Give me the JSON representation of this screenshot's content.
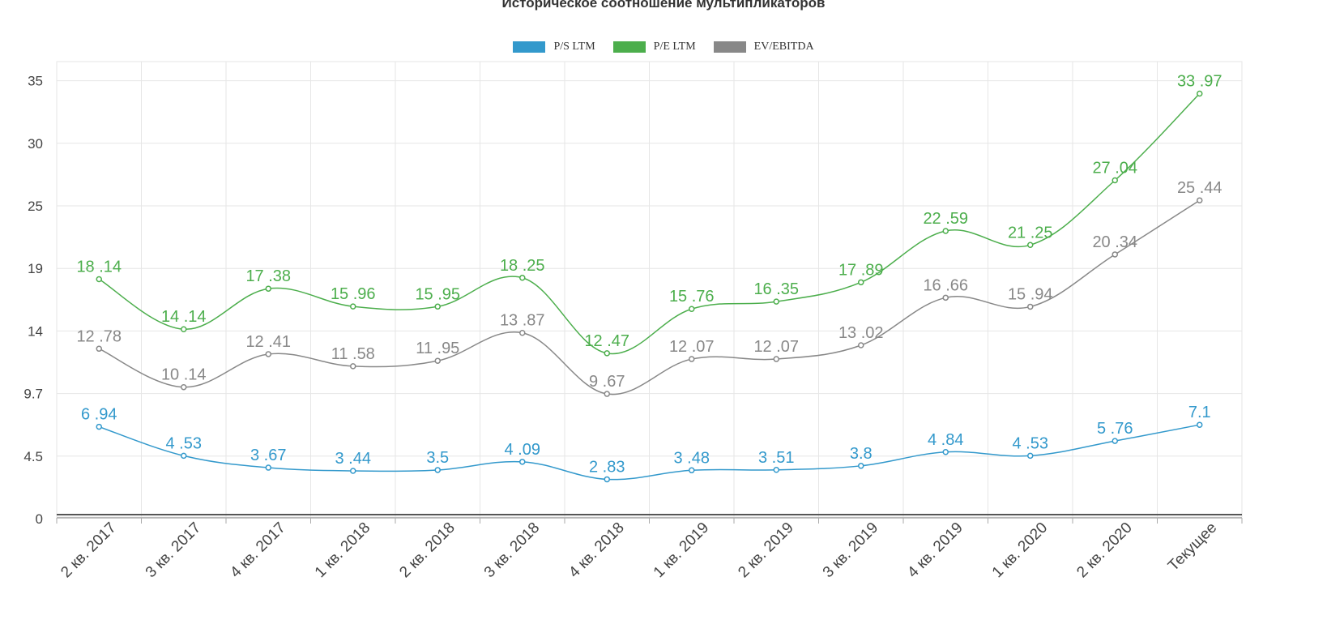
{
  "chart_data": {
    "type": "line",
    "title": "Историческое соотношение мультипликаторов",
    "categories": [
      "2 кв. 2017",
      "3 кв. 2017",
      "4 кв. 2017",
      "1 кв. 2018",
      "2 кв. 2018",
      "3 кв. 2018",
      "4 кв. 2018",
      "1 кв. 2019",
      "2 кв. 2019",
      "3 кв. 2019",
      "4 кв. 2019",
      "1 кв. 2020",
      "2 кв. 2020",
      "Текущее"
    ],
    "y_ticks": [
      "0",
      "4.5",
      "9.7",
      "14",
      "19",
      "25",
      "30",
      "35"
    ],
    "y_tick_values": [
      0,
      4.5,
      9.7,
      14,
      19,
      25,
      30,
      35
    ],
    "ylim": [
      0,
      35
    ],
    "grid": true,
    "legend_position": "top-center",
    "series": [
      {
        "name": "P/S LTM",
        "color": "#3399cc",
        "values": [
          6.94,
          4.53,
          3.67,
          3.44,
          3.5,
          4.09,
          2.83,
          3.48,
          3.51,
          3.8,
          4.84,
          4.53,
          5.76,
          7.1
        ],
        "labels": [
          "6 .94",
          "4 .53",
          "3 .67",
          "3 .44",
          "3.5",
          "4 .09",
          "2 .83",
          "3 .48",
          "3 .51",
          "3.8",
          "4 .84",
          "4 .53",
          "5 .76",
          "7.1"
        ]
      },
      {
        "name": "P/E LTM",
        "color": "#4cae4c",
        "values": [
          18.14,
          14.14,
          17.38,
          15.96,
          15.95,
          18.25,
          12.47,
          15.76,
          16.35,
          17.89,
          22.59,
          21.25,
          27.04,
          33.97
        ],
        "labels": [
          "18 .14",
          "14 .14",
          "17 .38",
          "15 .96",
          "15 .95",
          "18 .25",
          "12 .47",
          "15 .76",
          "16 .35",
          "17 .89",
          "22 .59",
          "21 .25",
          "27 .04",
          "33 .97"
        ]
      },
      {
        "name": "EV/EBITDA",
        "color": "#888888",
        "values": [
          12.78,
          10.14,
          12.41,
          11.58,
          11.95,
          13.87,
          9.67,
          12.07,
          12.07,
          13.02,
          16.66,
          15.94,
          20.34,
          25.44
        ],
        "labels": [
          "12 .78",
          "10 .14",
          "12 .41",
          "11 .58",
          "11 .95",
          "13 .87",
          "9 .67",
          "12 .07",
          "12 .07",
          "13 .02",
          "16 .66",
          "15 .94",
          "20 .34",
          "25 .44"
        ]
      }
    ]
  }
}
